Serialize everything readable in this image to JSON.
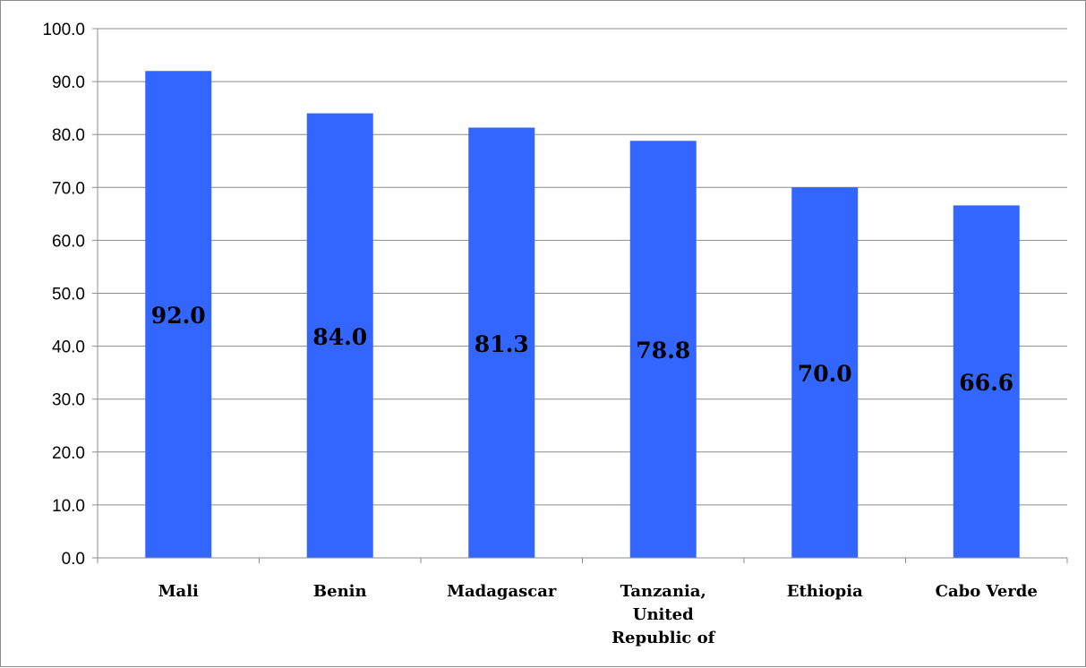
{
  "chart_data": {
    "type": "bar",
    "categories": [
      "Mali",
      "Benin",
      "Madagascar",
      "Tanzania, United Republic of",
      "Ethiopia",
      "Cabo Verde"
    ],
    "category_label_lines": [
      [
        "Mali"
      ],
      [
        "Benin"
      ],
      [
        "Madagascar"
      ],
      [
        "Tanzania,",
        "United",
        "Republic of"
      ],
      [
        "Ethiopia"
      ],
      [
        "Cabo Verde"
      ]
    ],
    "values": [
      92.0,
      84.0,
      81.3,
      78.8,
      70.0,
      66.6
    ],
    "data_labels": [
      "92.0",
      "84.0",
      "81.3",
      "78.8",
      "70.0",
      "66.6"
    ],
    "yticks": [
      "0.0",
      "10.0",
      "20.0",
      "30.0",
      "40.0",
      "50.0",
      "60.0",
      "70.0",
      "80.0",
      "90.0",
      "100.0"
    ],
    "ylim": [
      0,
      100
    ],
    "grid": true,
    "legend": "none",
    "bar_color": "#3366ff",
    "gridline_color": "#8c8c8c",
    "title": "",
    "xlabel": "",
    "ylabel": ""
  }
}
